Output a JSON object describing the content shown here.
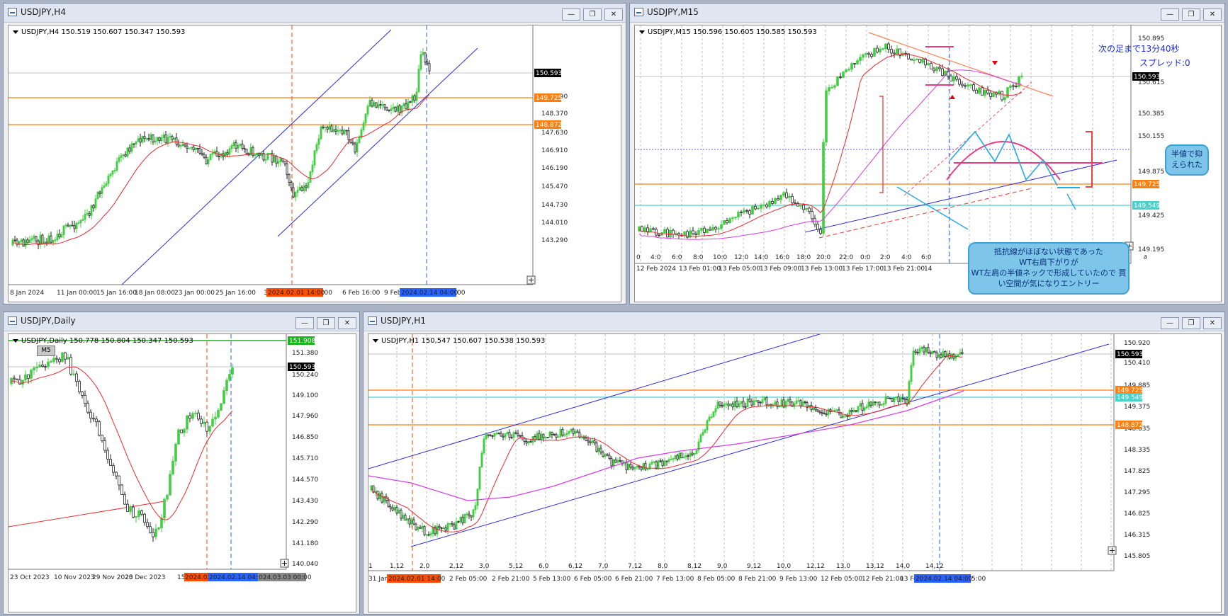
{
  "windows": {
    "h4": {
      "title": "USDJPY,H4",
      "info": "USDJPY,H4  150.519 150.607 150.347 150.593",
      "price_labels": [
        "149.090",
        "148.370",
        "147.630",
        "146.910",
        "146.190",
        "145.470",
        "144.730",
        "144.010",
        "143.290"
      ],
      "tags": {
        "current": "150.593",
        "level1": "149.725",
        "level2": "148.872"
      },
      "time_labels": [
        "8 Jan 2024",
        "11 Jan 00:00",
        "15 Jan 16:00",
        "18 Jan 08:00",
        "23 Jan 00:00",
        "25 Jan 16:00",
        "30",
        "00:00",
        "6 Feb 16:00",
        "9 Feb"
      ],
      "time_tags": {
        "red": "2024.02.01 14:00",
        "blue": "2024.02.14 04:00",
        "after_blue": "00"
      }
    },
    "m15": {
      "title": "USDJPY,M15",
      "info": "USDJPY,M15  150.596 150.605 150.585 150.593",
      "price_labels": [
        "150.895",
        "150.615",
        "150.385",
        "150.155",
        "149.875",
        "149.425",
        "149.195"
      ],
      "tags": {
        "current": "150.593",
        "level1": "149.725",
        "level2": "149.549"
      },
      "time_labels": [
        "0",
        "4:0",
        "6:0",
        "8:0",
        "10:0",
        "12:0",
        "14:0",
        "16:0",
        "18:0",
        "20:0",
        "22:0",
        "0:0",
        "2:0",
        "4:0",
        "6:0"
      ],
      "date_labels": [
        "12 Feb 2024",
        "13 Feb 01:00",
        "13 Feb 05:00",
        "13 Feb 09:00",
        "13 Feb 13:00",
        "13 Feb 17:00",
        "13 Feb 21:00",
        "14"
      ],
      "right_end": "∂",
      "countdown": "次の足まで13分40秒",
      "spread": "スプレッド:0",
      "bubble_half": "半値で抑\nえられた",
      "bubble_main_1": "抵抗線がほぼない状態であった",
      "bubble_main_2": "WT右肩下がりが",
      "bubble_main_3": "WT左肩の半値ネックで形成していたので 買",
      "bubble_main_4": "い空間が気になりエントリー"
    },
    "daily": {
      "title": "USDJPY,Daily",
      "info": "USDJPY,Daily  150.778 150.804 150.347 150.593",
      "badge": "M5",
      "price_labels": [
        "151.380",
        "150.240",
        "149.100",
        "147.960",
        "146.850",
        "145.710",
        "144.570",
        "143.430",
        "142.290",
        "141.180",
        "140.040"
      ],
      "tags": {
        "top": "151.908",
        "current": "150.593"
      },
      "time_labels": [
        "23 Oct 2023",
        "10 Nov 2023",
        "29 Nov 2023",
        "20 Dec 2023",
        "15"
      ],
      "time_tags": {
        "red": "2024.02",
        "blue": "2024.02.14 04:00",
        "gray": "024.03.03 00:00"
      }
    },
    "h1": {
      "title": "USDJPY,H1",
      "info": "USDJPY,H1  150,547 150.607 150.538 150.593",
      "price_labels": [
        "150.920",
        "150.410",
        "149.885",
        "149.375",
        "148.835",
        "148.335",
        "147.825",
        "147.295",
        "146.825",
        "146.315",
        "145.805"
      ],
      "tags": {
        "current": "150.593",
        "level1": "149.725",
        "level2": "149.549",
        "level3": "148.872"
      },
      "time_labels": [
        "1",
        "1,12",
        "2,0",
        "2,12",
        "3,0",
        "5,12",
        "6,0",
        "6,12",
        "7,0",
        "7,12",
        "8,0",
        "8,12",
        "9,0",
        "9,12",
        "10,0",
        "12,12",
        "13,0",
        "13,12",
        "14,0",
        "14,12"
      ],
      "date_labels": [
        "31 Jan",
        "2 Feb 05:00",
        "2 Feb 21:00",
        "5 Feb 13:00",
        "6 Feb 05:00",
        "6 Feb 21:00",
        "7 Feb 13:00",
        "8 Feb 05:00",
        "8 Feb 21:00",
        "9 Feb 13:00",
        "12 Feb 05:00",
        "12 Feb 21:00",
        "13 Fe"
      ],
      "time_tags": {
        "red": "2024.02.01 14:00",
        "blue": "2024.02.14 04:00",
        "after_blue": "5:00"
      }
    }
  },
  "window_buttons": {
    "minimize": "—",
    "restore": "❐",
    "close": "✕"
  },
  "colors": {
    "bull": "#44cc44",
    "bear": "#222222",
    "ma_red": "#e8282d",
    "ma_pink": "#d43ee0",
    "channel_blue": "#2c2cd8",
    "level_orange": "#ff7f0e",
    "level_cyan": "#48d1cc",
    "vline_red": "#ff4500",
    "vline_blue": "#2962ff",
    "bubble": "#7dc6ea"
  },
  "icons": {
    "window": "chart-window-icon",
    "scroll": "plus-icon"
  }
}
